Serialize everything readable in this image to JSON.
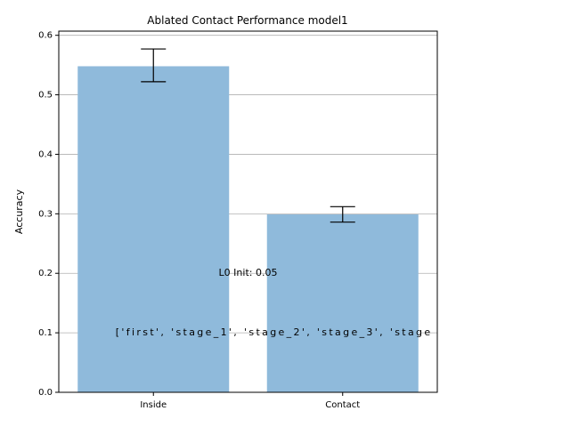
{
  "chart_data": {
    "type": "bar",
    "title": "Ablated Contact Performance model1",
    "xlabel": "",
    "ylabel": "Accuracy",
    "categories": [
      "Inside",
      "Contact"
    ],
    "values": [
      0.548,
      0.299
    ],
    "error_low": [
      0.522,
      0.286
    ],
    "error_high": [
      0.577,
      0.312
    ],
    "ylim": [
      0,
      0.607
    ],
    "yticks": [
      0.0,
      0.1,
      0.2,
      0.3,
      0.4,
      0.5,
      0.6
    ],
    "ytick_labels": [
      "0.0",
      "0.1",
      "0.2",
      "0.3",
      "0.4",
      "0.5",
      "0.6"
    ],
    "grid": "y",
    "bar_color": "#8fbadb",
    "grid_color": "#b0b0b0",
    "annotations": [
      {
        "text": "L0 Init: 0.05",
        "x": 0.5,
        "y": 0.2
      },
      {
        "text": "['first', 'stage_1', 'stage_2', 'stage_3', 'stage",
        "x": -0.2,
        "y": 0.1
      }
    ]
  }
}
